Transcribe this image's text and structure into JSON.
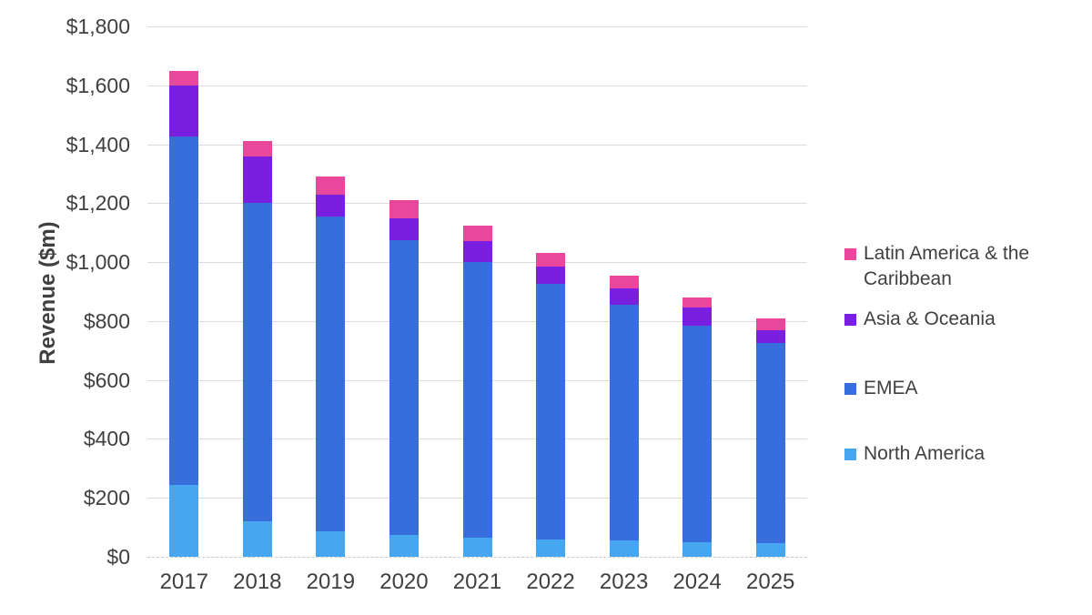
{
  "chart_data": {
    "type": "bar",
    "stacked": true,
    "ylabel": "Revenue ($m)",
    "xlabel": "",
    "ylim": [
      0,
      1800
    ],
    "y_tick_step": 200,
    "y_tick_labels": [
      "$0",
      "$200",
      "$400",
      "$600",
      "$800",
      "$1,000",
      "$1,200",
      "$1,400",
      "$1,600",
      "$1,800"
    ],
    "grid": true,
    "categories": [
      "2017",
      "2018",
      "2019",
      "2020",
      "2021",
      "2022",
      "2023",
      "2024",
      "2025"
    ],
    "series": [
      {
        "name": "North America",
        "color": "#47A6F0",
        "values": [
          245,
          120,
          85,
          75,
          65,
          60,
          55,
          50,
          45
        ]
      },
      {
        "name": "EMEA",
        "color": "#376EDB",
        "values": [
          1180,
          1080,
          1070,
          1000,
          935,
          865,
          800,
          735,
          680
        ]
      },
      {
        "name": "Asia & Oceania",
        "color": "#7A1FE0",
        "values": [
          175,
          160,
          75,
          75,
          70,
          60,
          55,
          60,
          45
        ]
      },
      {
        "name": "Latin America & the Caribbean",
        "color": "#E8479B",
        "values": [
          50,
          50,
          60,
          60,
          55,
          45,
          45,
          35,
          40
        ]
      }
    ],
    "totals": [
      1650,
      1410,
      1290,
      1210,
      1125,
      1030,
      955,
      880,
      810
    ],
    "legend": {
      "position": "right",
      "items": [
        "Latin America & the Caribbean",
        "Asia & Oceania",
        "EMEA",
        "North America"
      ]
    },
    "text_color": "#404040",
    "gridline_color": "#dcdcdc"
  }
}
